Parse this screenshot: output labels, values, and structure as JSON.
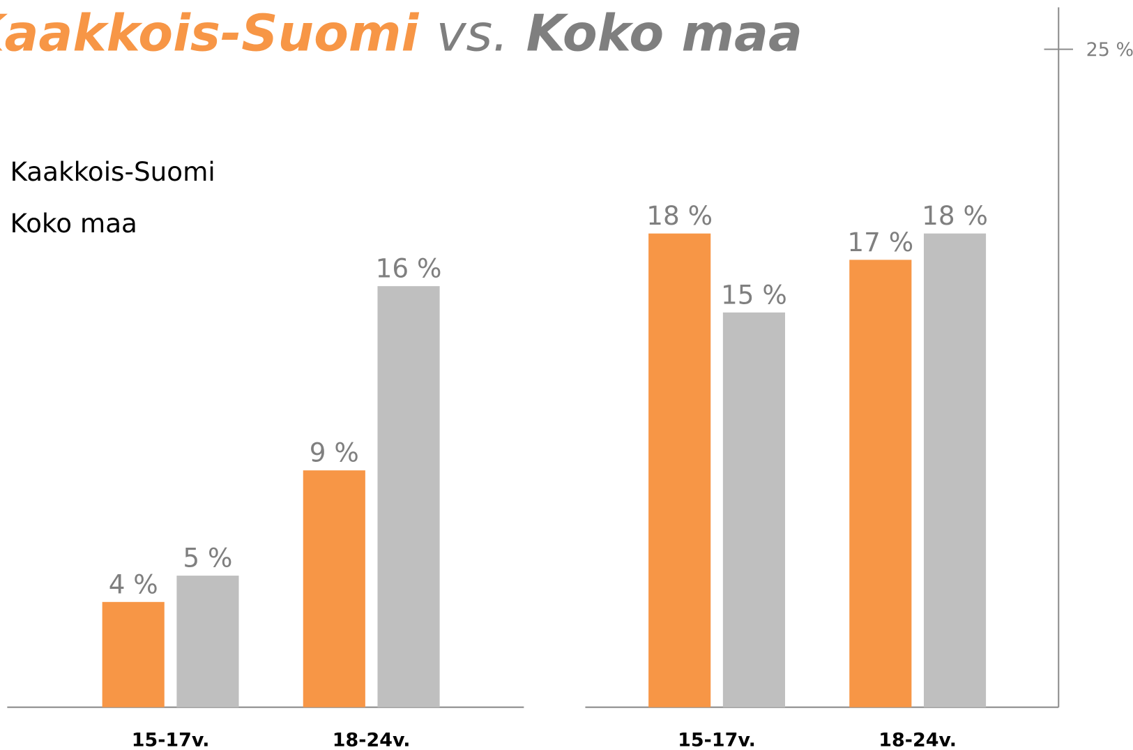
{
  "title": {
    "part1": "Kaakkois-Suomi",
    "part2": "vs.",
    "part3": "Koko maa"
  },
  "chart_data": [
    {
      "type": "bar",
      "categories": [
        "15-17v.",
        "18-24v."
      ],
      "series": [
        {
          "name": "Kaakkois-Suomi",
          "color": "#f79646",
          "values": [
            4,
            9
          ],
          "value_labels": [
            "4 %",
            "9 %"
          ]
        },
        {
          "name": "Koko maa",
          "color": "#bfbfbf",
          "values": [
            5,
            16
          ],
          "value_labels": [
            "5 %",
            "16 %"
          ]
        }
      ],
      "ylim": [
        0,
        25
      ]
    },
    {
      "type": "bar",
      "categories": [
        "15-17v.",
        "18-24v."
      ],
      "series": [
        {
          "color": "#f79646",
          "values": [
            18,
            17
          ],
          "value_labels": [
            "18 %",
            "17 %"
          ]
        },
        {
          "color": "#bfbfbf",
          "values": [
            15,
            18
          ],
          "value_labels": [
            "15 %",
            "18 %"
          ]
        }
      ],
      "ylim": [
        0,
        25
      ],
      "yticks": [
        {
          "value": 25,
          "label": "25 %"
        }
      ]
    }
  ]
}
